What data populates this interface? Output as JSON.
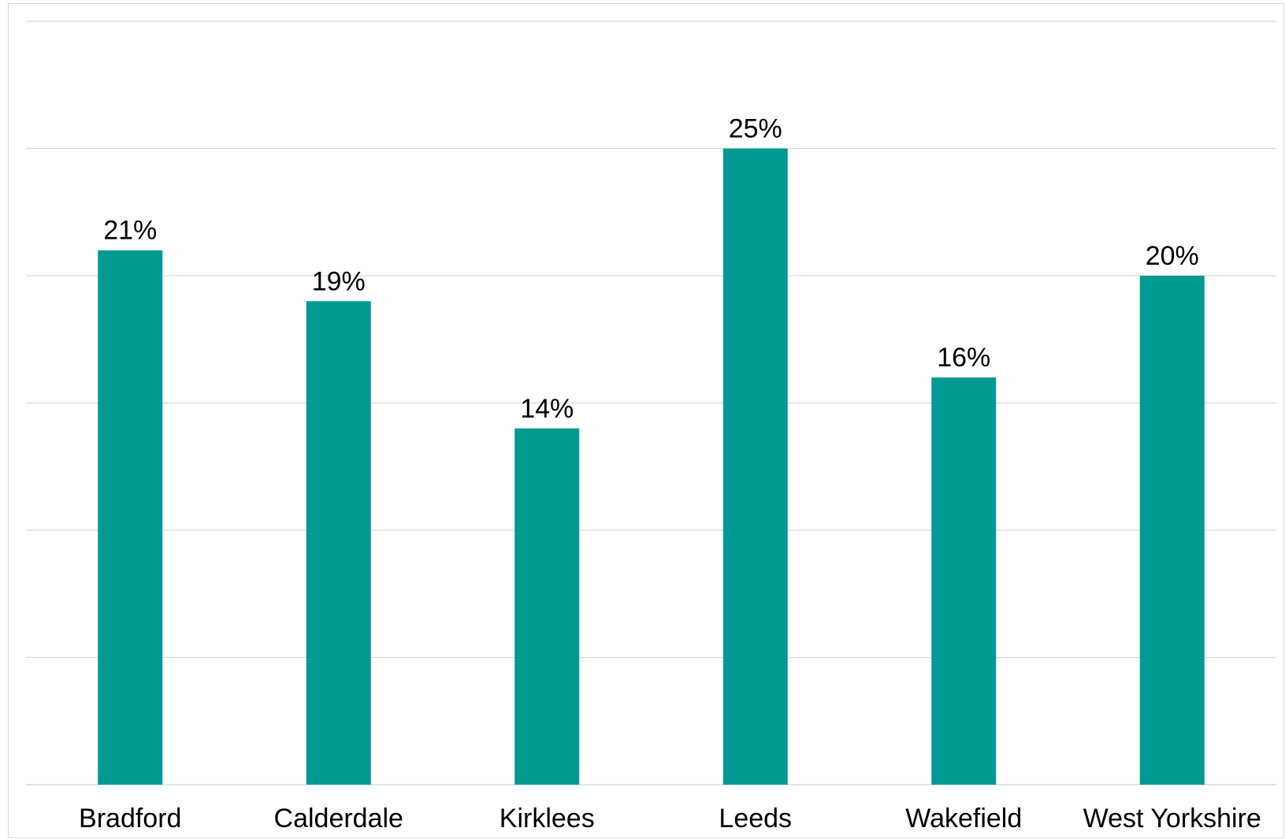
{
  "chart_data": {
    "type": "bar",
    "categories": [
      "Bradford",
      "Calderdale",
      "Kirklees",
      "Leeds",
      "Wakefield",
      "West Yorkshire"
    ],
    "values": [
      21,
      19,
      14,
      25,
      16,
      20
    ],
    "data_labels": [
      "21%",
      "19%",
      "14%",
      "25%",
      "16%",
      "20%"
    ],
    "unit": "%",
    "title": "",
    "xlabel": "",
    "ylabel": "",
    "ylim": [
      0,
      30
    ],
    "y_gridline_step": 5,
    "y_tick_labels_shown": false,
    "grid": true,
    "legend": "none",
    "bar_color": "#009A93"
  }
}
